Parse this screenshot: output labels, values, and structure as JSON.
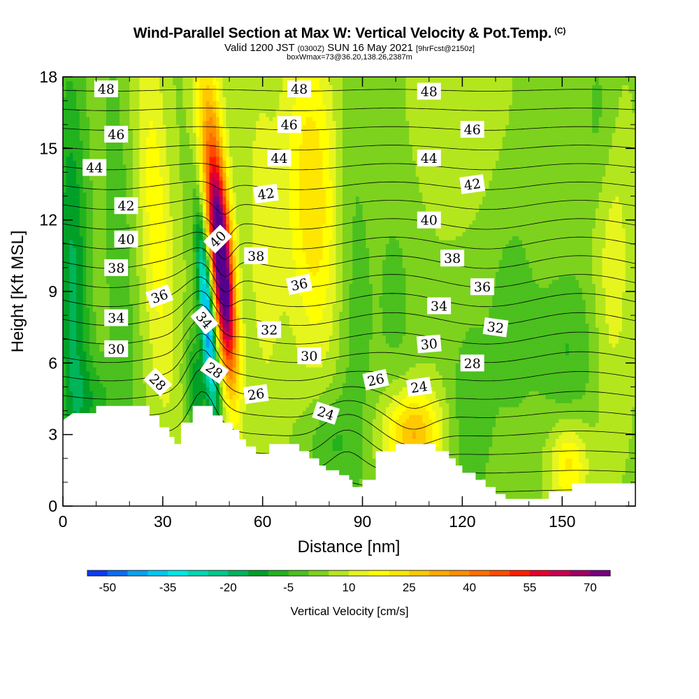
{
  "title": {
    "main": "Wind-Parallel Section at Max W: Vertical Velocity & Pot.Temp.",
    "copyright": "(C)",
    "valid_prefix": "Valid 1200 JST",
    "valid_zulu": "(0300Z)",
    "valid_date": "SUN 16 May 2021",
    "forecast": "[9hrFcst@2150z]",
    "box": "boxWmax=73@36.20,138.26,2387m"
  },
  "chart_data": {
    "type": "heatmap",
    "xlabel": "Distance [nm]",
    "ylabel": "Height [Kft MSL]",
    "xlim": [
      0,
      172
    ],
    "ylim": [
      0,
      18
    ],
    "x_ticks": [
      "0",
      "30",
      "60",
      "90",
      "120",
      "150"
    ],
    "y_ticks": [
      "0",
      "3",
      "6",
      "9",
      "12",
      "15",
      "18"
    ],
    "x_tick_values": [
      0,
      30,
      60,
      90,
      120,
      150
    ],
    "y_tick_values": [
      0,
      3,
      6,
      9,
      12,
      15,
      18
    ],
    "x_minor_step": 10,
    "y_minor_step": 1,
    "terrain": [
      [
        0,
        3.6
      ],
      [
        3,
        3.9
      ],
      [
        10,
        3.9
      ],
      [
        10,
        4.2
      ],
      [
        26,
        4.2
      ],
      [
        26,
        3.8
      ],
      [
        29,
        3.8
      ],
      [
        29,
        3.3
      ],
      [
        32,
        3.3
      ],
      [
        32,
        2.9
      ],
      [
        33.5,
        2.9
      ],
      [
        33.5,
        2.6
      ],
      [
        35.5,
        2.6
      ],
      [
        35.5,
        3.5
      ],
      [
        39,
        3.5
      ],
      [
        39,
        4.2
      ],
      [
        45,
        4.2
      ],
      [
        45,
        3.8
      ],
      [
        48,
        3.8
      ],
      [
        48,
        3.5
      ],
      [
        51,
        3.5
      ],
      [
        51,
        3.2
      ],
      [
        53,
        3.2
      ],
      [
        53,
        2.8
      ],
      [
        55,
        2.8
      ],
      [
        55,
        2.5
      ],
      [
        58,
        2.5
      ],
      [
        58,
        2.2
      ],
      [
        62,
        2.2
      ],
      [
        62,
        2.6
      ],
      [
        71,
        2.6
      ],
      [
        71,
        2.3
      ],
      [
        74,
        2.3
      ],
      [
        74,
        2.0
      ],
      [
        77,
        2.0
      ],
      [
        77,
        1.7
      ],
      [
        79,
        1.7
      ],
      [
        79,
        1.5
      ],
      [
        83,
        1.5
      ],
      [
        83,
        1.3
      ],
      [
        86,
        1.3
      ],
      [
        86,
        1.1
      ],
      [
        87,
        1.1
      ],
      [
        87,
        0.8
      ],
      [
        90,
        0.8
      ],
      [
        90,
        1.1
      ],
      [
        94,
        1.1
      ],
      [
        94,
        2.3
      ],
      [
        100,
        2.3
      ],
      [
        100,
        2.6
      ],
      [
        112,
        2.6
      ],
      [
        112,
        2.3
      ],
      [
        116,
        2.3
      ],
      [
        116,
        2.0
      ],
      [
        118,
        2.0
      ],
      [
        118,
        1.7
      ],
      [
        120,
        1.7
      ],
      [
        120,
        1.4
      ],
      [
        124,
        1.4
      ],
      [
        124,
        1.1
      ],
      [
        127,
        1.1
      ],
      [
        127,
        0.8
      ],
      [
        130,
        0.8
      ],
      [
        130,
        0.5
      ],
      [
        133,
        0.5
      ],
      [
        133,
        0.3
      ],
      [
        146,
        0.3
      ],
      [
        146,
        0.6
      ],
      [
        153,
        0.6
      ],
      [
        153,
        0.95
      ],
      [
        172,
        0.95
      ]
    ],
    "w_features": [
      {
        "x": 48,
        "y": 9.8,
        "sx": 2.2,
        "sy": 3.2,
        "shear": -0.55,
        "w": 72
      },
      {
        "x": 43.5,
        "y": 7.8,
        "sx": 1.6,
        "sy": 3.0,
        "shear": -0.55,
        "w": -52
      },
      {
        "x": 45,
        "y": 14.0,
        "sx": 3.0,
        "sy": 4.5,
        "shear": -0.45,
        "w": 25
      },
      {
        "x": 40,
        "y": 5.0,
        "sx": 2.0,
        "sy": 1.5,
        "shear": -0.3,
        "w": -18
      },
      {
        "x": 28,
        "y": 12.0,
        "sx": 3.5,
        "sy": 6.0,
        "shear": -0.35,
        "w": 14
      },
      {
        "x": 3,
        "y": 9.0,
        "sx": 3.5,
        "sy": 7.0,
        "shear": -0.1,
        "w": -20
      },
      {
        "x": 17,
        "y": 10.0,
        "sx": 3.0,
        "sy": 7.0,
        "shear": -0.25,
        "w": -8
      },
      {
        "x": 75,
        "y": 13.0,
        "sx": 6.0,
        "sy": 5.0,
        "shear": -0.2,
        "w": 20
      },
      {
        "x": 60,
        "y": 11.0,
        "sx": 4.0,
        "sy": 6.0,
        "shear": -0.2,
        "w": 8
      },
      {
        "x": 87,
        "y": 9.0,
        "sx": 4.0,
        "sy": 7.0,
        "shear": -0.1,
        "w": -7
      },
      {
        "x": 105,
        "y": 3.0,
        "sx": 6.0,
        "sy": 1.4,
        "shear": 0.0,
        "w": 28
      },
      {
        "x": 80,
        "y": 2.7,
        "sx": 5.0,
        "sy": 1.5,
        "shear": 0.0,
        "w": -10
      },
      {
        "x": 122,
        "y": 3.5,
        "sx": 4.5,
        "sy": 3.0,
        "shear": 0.0,
        "w": -8
      },
      {
        "x": 152,
        "y": 1.8,
        "sx": 4.0,
        "sy": 1.3,
        "shear": 0.0,
        "w": 18
      },
      {
        "x": 165,
        "y": 11.0,
        "sx": 4.0,
        "sy": 5.0,
        "shear": 0.0,
        "w": 10
      },
      {
        "x": 152,
        "y": 6.5,
        "sx": 6.0,
        "sy": 2.5,
        "shear": 0.0,
        "w": -9
      },
      {
        "x": 162,
        "y": 16.0,
        "sx": 4.0,
        "sy": 3.0,
        "shear": 0.0,
        "w": -8
      },
      {
        "x": 118,
        "y": 16.5,
        "sx": 10.0,
        "sy": 3.0,
        "shear": 0.0,
        "w": 6
      },
      {
        "x": 100,
        "y": 8.5,
        "sx": 5.0,
        "sy": 5.0,
        "shear": -0.1,
        "w": -5
      },
      {
        "x": 135,
        "y": 8.0,
        "sx": 6.0,
        "sy": 4.0,
        "shear": 0.0,
        "w": -6
      },
      {
        "x": 10,
        "y": 4.5,
        "sx": 5.0,
        "sy": 1.2,
        "shear": 0.0,
        "w": -9
      }
    ],
    "theta_min": 24,
    "theta_max": 50,
    "contour_step": 1,
    "theta_labels": [
      {
        "text": "48",
        "x": 13,
        "y": 17.5,
        "rot": 0
      },
      {
        "text": "46",
        "x": 16,
        "y": 15.6,
        "rot": 0
      },
      {
        "text": "44",
        "x": 9.5,
        "y": 14.2,
        "rot": 0
      },
      {
        "text": "42",
        "x": 19,
        "y": 12.6,
        "rot": 0
      },
      {
        "text": "40",
        "x": 19,
        "y": 11.2,
        "rot": 0
      },
      {
        "text": "38",
        "x": 16,
        "y": 10.0,
        "rot": 0
      },
      {
        "text": "36",
        "x": 29,
        "y": 8.8,
        "rot": -20
      },
      {
        "text": "34",
        "x": 16,
        "y": 7.9,
        "rot": 0
      },
      {
        "text": "30",
        "x": 16,
        "y": 6.6,
        "rot": 0
      },
      {
        "text": "28",
        "x": 28.5,
        "y": 5.2,
        "rot": 45
      },
      {
        "text": "40",
        "x": 46.5,
        "y": 11.2,
        "rot": -45
      },
      {
        "text": "34",
        "x": 42.5,
        "y": 7.8,
        "rot": 50
      },
      {
        "text": "28",
        "x": 45.5,
        "y": 5.7,
        "rot": 35
      },
      {
        "text": "48",
        "x": 71,
        "y": 17.5,
        "rot": 0
      },
      {
        "text": "46",
        "x": 68,
        "y": 16.0,
        "rot": 0
      },
      {
        "text": "44",
        "x": 65,
        "y": 14.6,
        "rot": 0
      },
      {
        "text": "42",
        "x": 61,
        "y": 13.1,
        "rot": -8
      },
      {
        "text": "38",
        "x": 58,
        "y": 10.5,
        "rot": 0
      },
      {
        "text": "36",
        "x": 71,
        "y": 9.3,
        "rot": -12
      },
      {
        "text": "32",
        "x": 62,
        "y": 7.4,
        "rot": 0
      },
      {
        "text": "30",
        "x": 74,
        "y": 6.3,
        "rot": 0
      },
      {
        "text": "26",
        "x": 58,
        "y": 4.7,
        "rot": -8
      },
      {
        "text": "24",
        "x": 79,
        "y": 3.9,
        "rot": 18
      },
      {
        "text": "26",
        "x": 94,
        "y": 5.3,
        "rot": -12
      },
      {
        "text": "24",
        "x": 107,
        "y": 5.0,
        "rot": -8
      },
      {
        "text": "48",
        "x": 110,
        "y": 17.4,
        "rot": 0
      },
      {
        "text": "46",
        "x": 123,
        "y": 15.8,
        "rot": 0
      },
      {
        "text": "44",
        "x": 110,
        "y": 14.6,
        "rot": 0
      },
      {
        "text": "42",
        "x": 123,
        "y": 13.5,
        "rot": -8
      },
      {
        "text": "40",
        "x": 110,
        "y": 12.0,
        "rot": 0
      },
      {
        "text": "38",
        "x": 117,
        "y": 10.4,
        "rot": 0
      },
      {
        "text": "36",
        "x": 126,
        "y": 9.2,
        "rot": 0
      },
      {
        "text": "34",
        "x": 113,
        "y": 8.4,
        "rot": 0
      },
      {
        "text": "32",
        "x": 130,
        "y": 7.5,
        "rot": 8
      },
      {
        "text": "30",
        "x": 110,
        "y": 6.8,
        "rot": -5
      },
      {
        "text": "28",
        "x": 123,
        "y": 6.0,
        "rot": 0
      }
    ]
  },
  "colorbar": {
    "title": "Vertical Velocity [cm/s]",
    "tick_labels": [
      "-50",
      "-35",
      "-20",
      "-5",
      "10",
      "25",
      "40",
      "55",
      "70"
    ],
    "boundaries": [
      -55,
      -50,
      -45,
      -40,
      -35,
      -30,
      -25,
      -20,
      -15,
      -10,
      -5,
      0,
      5,
      10,
      15,
      20,
      25,
      30,
      35,
      40,
      45,
      50,
      55,
      60,
      65,
      70,
      75
    ],
    "colors": [
      "#0000f0",
      "#0a3cf0",
      "#0a6cf0",
      "#0aa0f0",
      "#00c8f0",
      "#00e6e6",
      "#00d7b4",
      "#00c88c",
      "#00b45a",
      "#00a028",
      "#22b21e",
      "#4bc01e",
      "#7dd21e",
      "#b4e61e",
      "#e6f51e",
      "#ffff00",
      "#ffe600",
      "#ffc800",
      "#ffaa00",
      "#ff8c00",
      "#ff6e00",
      "#ff4b00",
      "#ff1e00",
      "#e6002d",
      "#c80050",
      "#a00064",
      "#780082",
      "#55008c"
    ]
  },
  "colors": {
    "terrain": "#ffffff",
    "contour": "#000000"
  }
}
